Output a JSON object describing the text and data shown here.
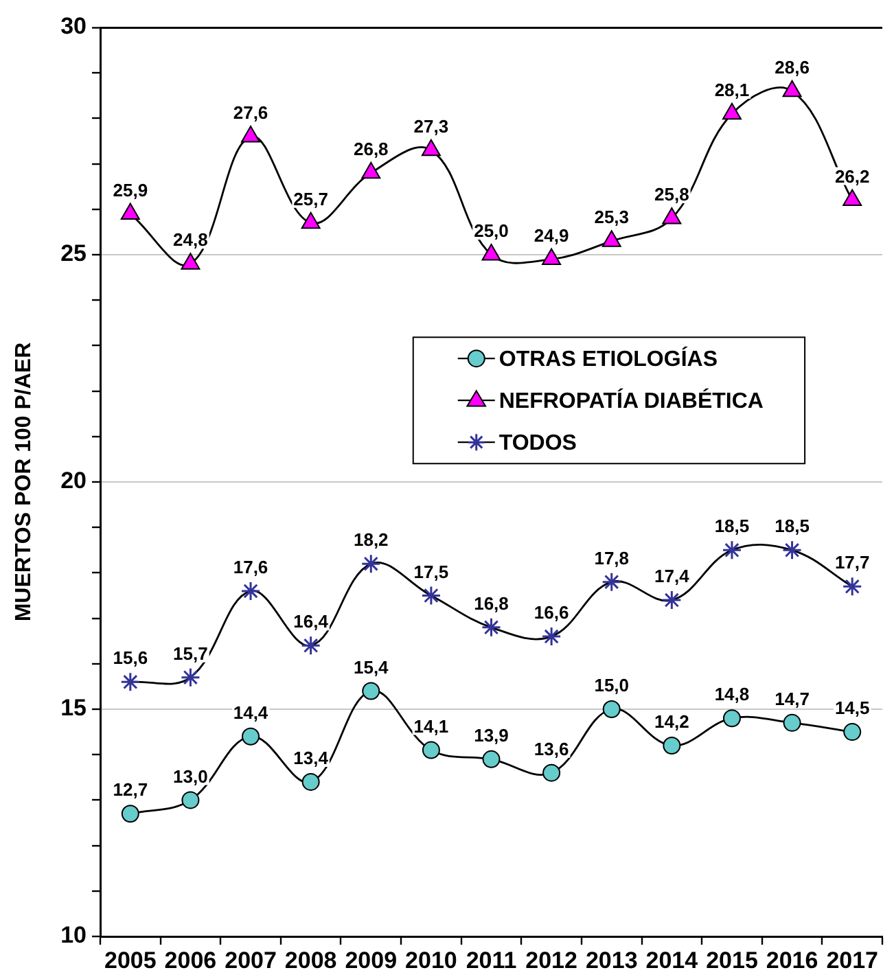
{
  "chart_data": {
    "type": "line",
    "ylabel": "MUERTOS POR 100 P/AER",
    "categories": [
      "2005",
      "2006",
      "2007",
      "2008",
      "2009",
      "2010",
      "2011",
      "2012",
      "2013",
      "2014",
      "2015",
      "2016",
      "2017"
    ],
    "ylim": [
      10,
      30
    ],
    "yticks": [
      10,
      {
        "value": 11,
        "label": null
      },
      {
        "value": 12,
        "label": null
      },
      {
        "value": 13,
        "label": null
      },
      {
        "value": 14,
        "label": null
      },
      15,
      {
        "value": 16,
        "label": null
      },
      {
        "value": 17,
        "label": null
      },
      {
        "value": 18,
        "label": null
      },
      {
        "value": 19,
        "label": null
      },
      20,
      {
        "value": 21,
        "label": null
      },
      {
        "value": 22,
        "label": null
      },
      {
        "value": 23,
        "label": null
      },
      {
        "value": 24,
        "label": null
      },
      25,
      {
        "value": 26,
        "label": null
      },
      {
        "value": 27,
        "label": null
      },
      {
        "value": 28,
        "label": null
      },
      {
        "value": 29,
        "label": null
      },
      30
    ],
    "grid": "y",
    "legend": "right",
    "line_style": "solid",
    "series": [
      {
        "name": "OTRAS ETIOLOGÍAS",
        "color": "#66cccc",
        "marker": "circle",
        "values": [
          12.7,
          13.0,
          14.4,
          13.4,
          15.4,
          14.1,
          13.9,
          13.6,
          15.0,
          14.2,
          14.8,
          14.7,
          14.5
        ],
        "value_labels": [
          "12,7",
          "13,0",
          "14,4",
          "13,4",
          "15,4",
          "14,1",
          "13,9",
          "13,6",
          "15,0",
          "14,2",
          "14,8",
          "14,7",
          "14,5"
        ]
      },
      {
        "name": "NEFROPATÍA DIABÉTICA",
        "color": "#ff00ff",
        "marker": "triangle",
        "values": [
          25.9,
          24.8,
          27.6,
          25.7,
          26.8,
          27.3,
          25.0,
          24.9,
          25.3,
          25.8,
          28.1,
          28.6,
          26.2
        ],
        "value_labels": [
          "25,9",
          "24,8",
          "27,6",
          "25,7",
          "26,8",
          "27,3",
          "25,0",
          "24,9",
          "25,3",
          "25,8",
          "28,1",
          "28,6",
          "26,2"
        ]
      },
      {
        "name": "TODOS",
        "color": "#333399",
        "marker": "cross",
        "values": [
          15.6,
          15.7,
          17.6,
          16.4,
          18.2,
          17.5,
          16.8,
          16.6,
          17.8,
          17.4,
          18.5,
          18.5,
          17.7
        ],
        "value_labels": [
          "15,6",
          "15,7",
          "17,6",
          "16,4",
          "18,2",
          "17,5",
          "16,8",
          "16,6",
          "17,8",
          "17,4",
          "18,5",
          "18,5",
          "17,7"
        ]
      }
    ]
  }
}
